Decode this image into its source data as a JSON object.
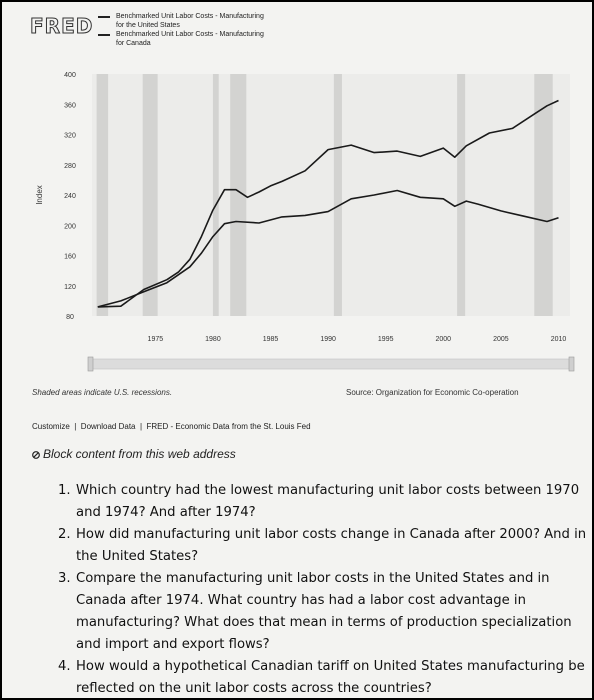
{
  "header": {
    "logo": "FRED",
    "legend": [
      {
        "label": "Benchmarked Unit Labor Costs - Manufacturing for the United States",
        "color": "#1a1a1a"
      },
      {
        "label": "Benchmarked Unit Labor Costs - Manufacturing for Canada",
        "color": "#1a1a1a"
      }
    ]
  },
  "chart_data": {
    "type": "line",
    "ylabel": "Index",
    "ylim": [
      80,
      400
    ],
    "yticks": [
      80,
      120,
      160,
      200,
      240,
      280,
      320,
      360,
      400
    ],
    "xlim": [
      1969.5,
      2011
    ],
    "xticks": [
      1975,
      1980,
      1985,
      1990,
      1995,
      2000,
      2005,
      2010
    ],
    "series": [
      {
        "name": "Benchmarked Unit Labor Costs - Manufacturing for the United States",
        "x": [
          1970,
          1972,
          1974,
          1976,
          1977,
          1978,
          1979,
          1980,
          1981,
          1982,
          1983,
          1984,
          1985,
          1986,
          1988,
          1990,
          1992,
          1994,
          1996,
          1998,
          2000,
          2001,
          2002,
          2004,
          2006,
          2008,
          2009,
          2010
        ],
        "y": [
          92,
          93,
          115,
          128,
          138,
          155,
          185,
          220,
          247,
          247,
          237,
          244,
          252,
          258,
          272,
          300,
          306,
          296,
          298,
          291,
          302,
          290,
          305,
          322,
          328,
          348,
          358,
          365
        ]
      },
      {
        "name": "Benchmarked Unit Labor Costs - Manufacturing for Canada",
        "x": [
          1970,
          1972,
          1974,
          1976,
          1978,
          1979,
          1980,
          1981,
          1982,
          1984,
          1986,
          1988,
          1990,
          1992,
          1994,
          1996,
          1998,
          2000,
          2001,
          2002,
          2003,
          2005,
          2007,
          2009,
          2010
        ],
        "y": [
          92,
          100,
          112,
          124,
          145,
          163,
          185,
          202,
          205,
          203,
          211,
          213,
          218,
          235,
          240,
          246,
          237,
          235,
          225,
          232,
          228,
          219,
          212,
          205,
          210
        ]
      }
    ],
    "recessions": [
      [
        1969.9,
        1970.9
      ],
      [
        1973.9,
        1975.2
      ],
      [
        1980.0,
        1980.5
      ],
      [
        1981.5,
        1982.9
      ],
      [
        1990.5,
        1991.2
      ],
      [
        2001.2,
        2001.9
      ],
      [
        2007.9,
        2009.5
      ]
    ]
  },
  "footer": {
    "recession_note": "Shaded areas indicate U.S. recessions.",
    "source": "Source: Organization for Economic Co-operation"
  },
  "links": {
    "customize": "Customize",
    "download": "Download Data",
    "fred": "FRED - Economic Data from the St. Louis Fed"
  },
  "notice": {
    "icon": "circle-icon",
    "text": "Block content from this web address"
  },
  "questions": [
    {
      "num": "1.",
      "text": "Which country had the lowest manufacturing unit labor costs between 1970 and 1974? And after 1974?"
    },
    {
      "num": "2.",
      "text": "How did manufacturing unit labor costs change in Canada after 2000? And in the United States?"
    },
    {
      "num": "3.",
      "text": "Compare the manufacturing unit labor costs in the United States and in Canada after 1974. What country has had a labor cost advantage in manufacturing? What does that mean in terms of production specialization and import and export flows?"
    },
    {
      "num": "4.",
      "text": "How would a hypothetical Canadian tariff on United States manufacturing be reflected on the unit labor costs across the countries?"
    }
  ]
}
